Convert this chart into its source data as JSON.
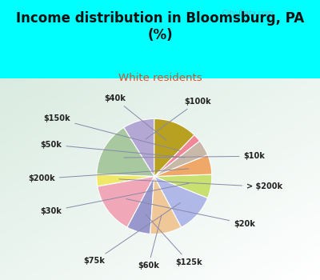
{
  "title": "Income distribution in Bloomsburg, PA\n(%)",
  "subtitle": "White residents",
  "title_color": "#111111",
  "subtitle_color": "#cc5533",
  "background_color": "#00ffff",
  "watermark": "  City-Data.com",
  "labels": [
    "$100k",
    "$10k",
    "> $200k",
    "$20k",
    "$125k",
    "$60k",
    "$75k",
    "$30k",
    "$200k",
    "$50k",
    "$150k",
    "$40k"
  ],
  "values": [
    8,
    14,
    3,
    13,
    6,
    8,
    10,
    6,
    5,
    4,
    2,
    11
  ],
  "colors": [
    "#b3a8d4",
    "#a8c8a0",
    "#f0e868",
    "#f0a8b8",
    "#9898cc",
    "#f0c898",
    "#b0b8e8",
    "#c8e070",
    "#f0a868",
    "#c8b8a8",
    "#f08898",
    "#b8a020"
  ]
}
